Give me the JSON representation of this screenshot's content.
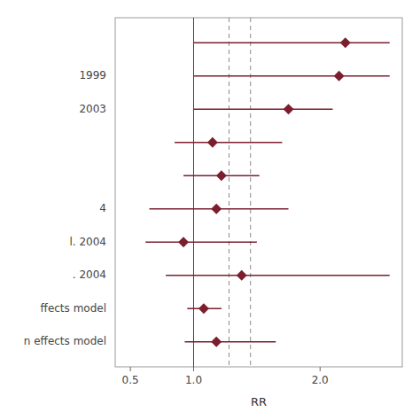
{
  "chart_data": {
    "type": "forest",
    "categories": [
      null,
      "1999",
      "2003",
      null,
      null,
      "4",
      "l. 2004",
      ". 2004",
      "ffects model",
      "n effects model"
    ],
    "values": [
      2.2,
      2.15,
      1.75,
      1.15,
      1.22,
      1.18,
      0.92,
      1.38,
      1.08,
      1.18
    ],
    "ci_low": [
      1.0,
      1.0,
      1.0,
      0.85,
      0.92,
      0.65,
      0.62,
      0.78,
      0.95,
      0.93
    ],
    "ci_high": [
      2.55,
      2.55,
      2.1,
      1.7,
      1.52,
      1.75,
      1.5,
      2.55,
      1.22,
      1.65
    ],
    "color": "#7B1E2E",
    "marker": "diamond",
    "reference_lines": [
      {
        "value": 1.0,
        "line_style": "solid"
      },
      {
        "value": 1.28,
        "line_style": "dashed"
      },
      {
        "value": 1.45,
        "line_style": "dashed"
      }
    ],
    "xlim": [
      0.38,
      2.65
    ],
    "xticks": [
      0.5,
      {
        "value": 1.0,
        "label": "1.0"
      },
      {
        "value": 2.0,
        "label": "2.0"
      }
    ],
    "x_label": "RR",
    "grid": false
  }
}
